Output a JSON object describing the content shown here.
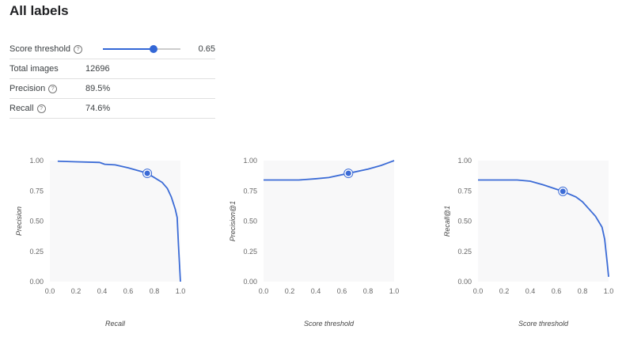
{
  "title": "All labels",
  "table": {
    "threshold_label": "Score threshold",
    "threshold_value": "0.65",
    "threshold_fraction": 0.65,
    "total_label": "Total images",
    "total_value": "12696",
    "precision_label": "Precision",
    "precision_value": "89.5%",
    "recall_label": "Recall",
    "recall_value": "74.6%",
    "help_icon": "question-circle-icon"
  },
  "colors": {
    "line": "#3b6bd6",
    "plot_bg": "#f8f8f9"
  },
  "chart_data": [
    {
      "type": "line",
      "xlabel": "Recall",
      "ylabel": "Precision",
      "xlim": [
        0,
        1
      ],
      "ylim": [
        0,
        1
      ],
      "xticks": [
        "0.0",
        "0.2",
        "0.4",
        "0.6",
        "0.8",
        "1.0"
      ],
      "yticks": [
        "0.00",
        "0.25",
        "0.50",
        "0.75",
        "1.00"
      ],
      "x": [
        0.06,
        0.2,
        0.38,
        0.42,
        0.5,
        0.6,
        0.7,
        0.746,
        0.8,
        0.86,
        0.9,
        0.93,
        0.96,
        0.975,
        0.985,
        1.0
      ],
      "y": [
        0.995,
        0.99,
        0.985,
        0.97,
        0.965,
        0.94,
        0.91,
        0.895,
        0.86,
        0.82,
        0.77,
        0.7,
        0.6,
        0.53,
        0.3,
        0.0
      ],
      "marker": [
        0.746,
        0.895
      ]
    },
    {
      "type": "line",
      "xlabel": "Score threshold",
      "ylabel": "Precision@1",
      "xlim": [
        0,
        1
      ],
      "ylim": [
        0,
        1
      ],
      "xticks": [
        "0.0",
        "0.2",
        "0.4",
        "0.6",
        "0.8",
        "1.0"
      ],
      "yticks": [
        "0.00",
        "0.25",
        "0.50",
        "0.75",
        "1.00"
      ],
      "x": [
        0,
        0.27,
        0.4,
        0.5,
        0.65,
        0.8,
        0.9,
        0.95,
        1.0
      ],
      "y": [
        0.84,
        0.84,
        0.85,
        0.86,
        0.895,
        0.93,
        0.96,
        0.98,
        1.0
      ],
      "marker": [
        0.65,
        0.895
      ]
    },
    {
      "type": "line",
      "xlabel": "Score threshold",
      "ylabel": "Recall@1",
      "xlim": [
        0,
        1
      ],
      "ylim": [
        0,
        1
      ],
      "xticks": [
        "0.0",
        "0.2",
        "0.4",
        "0.6",
        "0.8",
        "1.0"
      ],
      "yticks": [
        "0.00",
        "0.25",
        "0.50",
        "0.75",
        "1.00"
      ],
      "x": [
        0,
        0.3,
        0.4,
        0.5,
        0.65,
        0.75,
        0.8,
        0.85,
        0.9,
        0.95,
        0.97,
        0.99,
        1.0
      ],
      "y": [
        0.84,
        0.84,
        0.83,
        0.8,
        0.746,
        0.7,
        0.66,
        0.6,
        0.54,
        0.45,
        0.35,
        0.15,
        0.04
      ],
      "marker": [
        0.65,
        0.746
      ]
    }
  ]
}
